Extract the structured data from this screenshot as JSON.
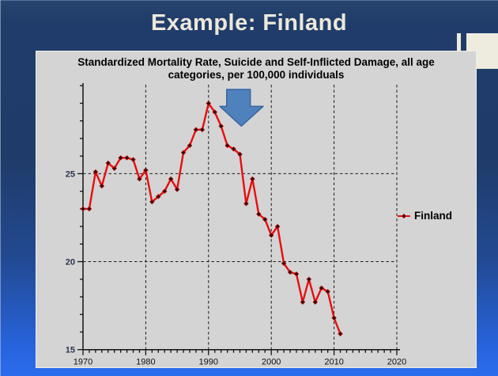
{
  "header": {
    "title": "Example: Finland"
  },
  "chart": {
    "title_line1": "Standardized Mortality Rate, Suicide and Self-Inflicted Damage, all age",
    "title_line2": "categories, per 100,000 individuals",
    "legend_label": "Finland"
  },
  "colors": {
    "background_top": "#1f3b69",
    "background_bottom": "#2b6cee",
    "panel": "#d4d4d4",
    "title_text": "#ece8da",
    "deco_cream": "#eeebdf",
    "line": "#e60f0f",
    "marker": "#2a0505",
    "arrow_fill": "#4f81bd",
    "arrow_border": "#3a629e",
    "axis": "#141414",
    "y_tick_label": "#2c3450",
    "x_tick_label": "#101014"
  },
  "chart_data": {
    "type": "line",
    "title": "Standardized Mortality Rate, Suicide and Self-Inflicted Damage, all age categories, per 100,000 individuals",
    "xlabel": "",
    "ylabel": "",
    "xlim": [
      1970,
      2020.6
    ],
    "ylim": [
      15,
      30.2
    ],
    "grid": "dashed",
    "legend_position": "right",
    "xticks_major": [
      1970,
      1980,
      1990,
      2000,
      2010,
      2020
    ],
    "xticks_minor_step": 1,
    "yticks_major": [
      15,
      20,
      25
    ],
    "yticks_minor_step": 1,
    "grid_x": [
      1980,
      1990,
      2000,
      2010,
      2020
    ],
    "grid_y": [
      20,
      25
    ],
    "series": [
      {
        "name": "Finland",
        "x": [
          1970,
          1971,
          1972,
          1973,
          1974,
          1975,
          1976,
          1977,
          1978,
          1979,
          1980,
          1981,
          1982,
          1983,
          1984,
          1985,
          1986,
          1987,
          1988,
          1989,
          1990,
          1991,
          1992,
          1993,
          1994,
          1995,
          1996,
          1997,
          1998,
          1999,
          2000,
          2001,
          2002,
          2003,
          2004,
          2005,
          2006,
          2007,
          2008,
          2009,
          2010,
          2011
        ],
        "values": [
          23.0,
          23.0,
          25.1,
          24.3,
          25.6,
          25.3,
          25.9,
          25.9,
          25.8,
          24.7,
          25.2,
          23.4,
          23.7,
          24.0,
          24.7,
          24.1,
          26.2,
          26.6,
          27.5,
          27.5,
          29.0,
          28.5,
          27.7,
          26.6,
          26.4,
          26.1,
          23.3,
          24.7,
          22.7,
          22.4,
          21.5,
          22.0,
          19.9,
          19.4,
          19.3,
          17.7,
          19.0,
          17.7,
          18.5,
          18.3,
          16.8,
          15.9
        ]
      }
    ],
    "annotations": [
      {
        "shape": "block-arrow-down",
        "near_year": 1992,
        "color": "#4f81bd",
        "note": "points at early-1990s peak"
      }
    ]
  }
}
